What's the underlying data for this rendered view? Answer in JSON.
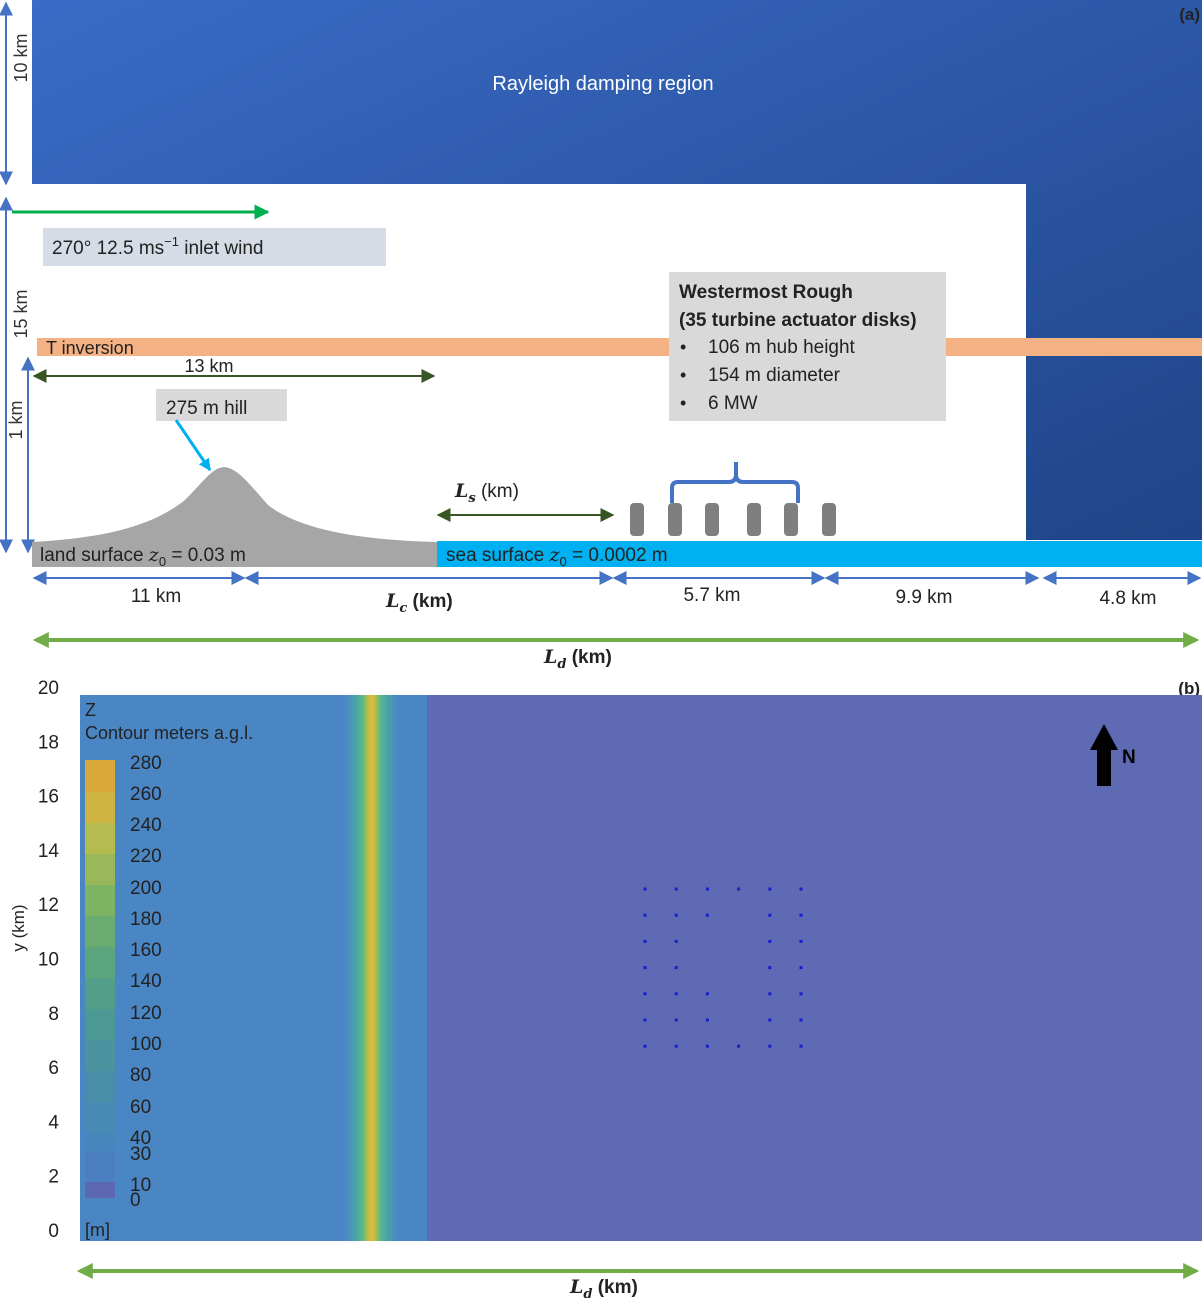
{
  "panel_a": {
    "label": "(a)",
    "damping_region": "Rayleigh damping region",
    "height_damping": "10 km",
    "height_domain": "15 km",
    "height_low": "1 km",
    "inlet_wind": {
      "prefix": "270° 12.5 ms",
      "sup": "−1",
      "suffix": " inlet wind"
    },
    "t_inversion": "T inversion",
    "dist_13km": "13 km",
    "hill": "275 m hill",
    "farm": {
      "title": "Westermost Rough",
      "subtitle": "(35 turbine actuator disks)",
      "bullets": [
        "106 m hub height",
        "154 m diameter",
        "6 MW"
      ]
    },
    "land": {
      "prefix": "land surface ",
      "var": "z",
      "sub": "0",
      "suffix": " = 0.03 m"
    },
    "sea": {
      "prefix": "sea surface ",
      "var": "z",
      "sub": "0",
      "suffix": " = 0.0002 m"
    },
    "ls": {
      "var": "L",
      "sub": "s",
      "unit": " (km)"
    },
    "bottom_dims": {
      "d1": "11 km",
      "lc": {
        "var": "L",
        "sub": "c",
        "unit": " (km)"
      },
      "d3": "5.7 km",
      "d4": "9.9 km",
      "d5": "4.8 km"
    },
    "ld": {
      "var": "L",
      "sub": "d",
      "unit": " (km)"
    }
  },
  "panel_b": {
    "label": "(b)",
    "ylabel": "y (km)",
    "yticks": [
      "0",
      "2",
      "4",
      "6",
      "8",
      "10",
      "12",
      "14",
      "16",
      "18",
      "20"
    ],
    "colorbar": {
      "title": "Z",
      "subtitle": "Contour meters a.g.l.",
      "unit": "[m]",
      "levels": [
        "280",
        "260",
        "240",
        "220",
        "200",
        "180",
        "160",
        "140",
        "120",
        "100",
        "80",
        "60",
        "40",
        "30",
        "10",
        "0"
      ]
    },
    "north": "N",
    "ld": {
      "var": "L",
      "sub": "d",
      "unit": " (km)"
    },
    "turbine_rows": [
      [
        1,
        1,
        1,
        1,
        1,
        1
      ],
      [
        1,
        1,
        1,
        0,
        1,
        1
      ],
      [
        1,
        1,
        0,
        0,
        1,
        1
      ],
      [
        1,
        1,
        0,
        0,
        1,
        1
      ],
      [
        1,
        1,
        1,
        0,
        1,
        1
      ],
      [
        1,
        1,
        1,
        0,
        1,
        1
      ],
      [
        1,
        1,
        1,
        1,
        1,
        1
      ]
    ]
  },
  "colors": {
    "damping_top": "#3a6bc6",
    "damping_bottom": "#1f4488",
    "inversion": "#f4b183",
    "land": "#a6a6a6",
    "sea": "#00b0f0",
    "inlet_arrow": "#00b050",
    "dim_blue": "#4472c4",
    "dim_green": "#375623",
    "ld_arrow": "#70ad47",
    "land_map": "#4a86c4",
    "sea_map": "#5e6ab3",
    "hill_ridge": "#e8b838"
  }
}
